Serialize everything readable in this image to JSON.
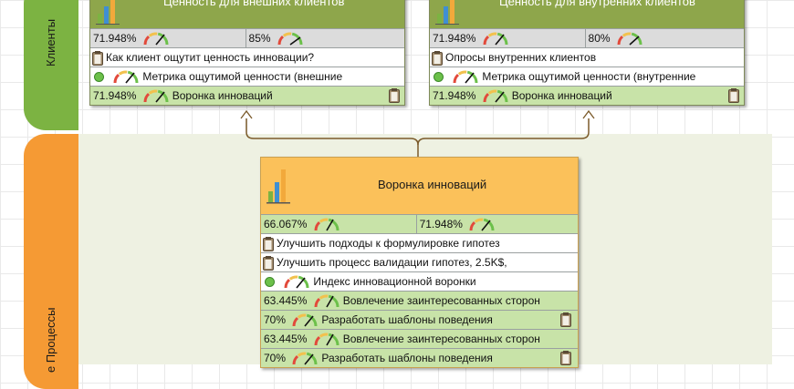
{
  "lanes": {
    "clients_title": "Клиенты",
    "process_title": "е Процессы"
  },
  "cards": {
    "external": {
      "title": "Ценность для внешних клиентов",
      "metric1": "71.948%",
      "metric2": "85%",
      "question": "Как клиент ощутит ценность инновации?",
      "metric_row": "Метрика ощутимой ценности (внешние",
      "funnel_value": "71.948%",
      "funnel_label": "Воронка инноваций"
    },
    "internal": {
      "title": "Ценность для внутренних клиентов",
      "metric1": "71.948%",
      "metric2": "80%",
      "question": "Опросы внутренних клиентов",
      "metric_row": "Метрика ощутимой ценности (внутренние",
      "funnel_value": "71.948%",
      "funnel_label": "Воронка инноваций"
    },
    "funnel": {
      "title": "Воронка инноваций",
      "metric1": "66.067%",
      "metric2": "71.948%",
      "item1": "Улучшить подходы к формулировке гипотез",
      "item2": "Улучшить процесс валидации гипотез, 2.5K$,",
      "index_label": "Индекс инновационной воронки",
      "rows": [
        {
          "value": "63.445%",
          "label": "Вовлечение заинтересованных сторон"
        },
        {
          "value": "70%",
          "label": "Разработать шаблоны поведения"
        },
        {
          "value": "63.445%",
          "label": "Вовлечение заинтересованных сторон"
        },
        {
          "value": "70%",
          "label": "Разработать шаблоны поведения"
        }
      ]
    }
  },
  "colors": {
    "client_lane": "#7cb342",
    "process_lane": "#f59a34",
    "green_card_header": "#8ea64b",
    "orange_card_header": "#fbc15a",
    "metric_green": "#c8e3a8"
  },
  "icons": [
    "bar-chart-icon",
    "gauge-icon",
    "clipboard-icon",
    "status-dot-icon"
  ]
}
